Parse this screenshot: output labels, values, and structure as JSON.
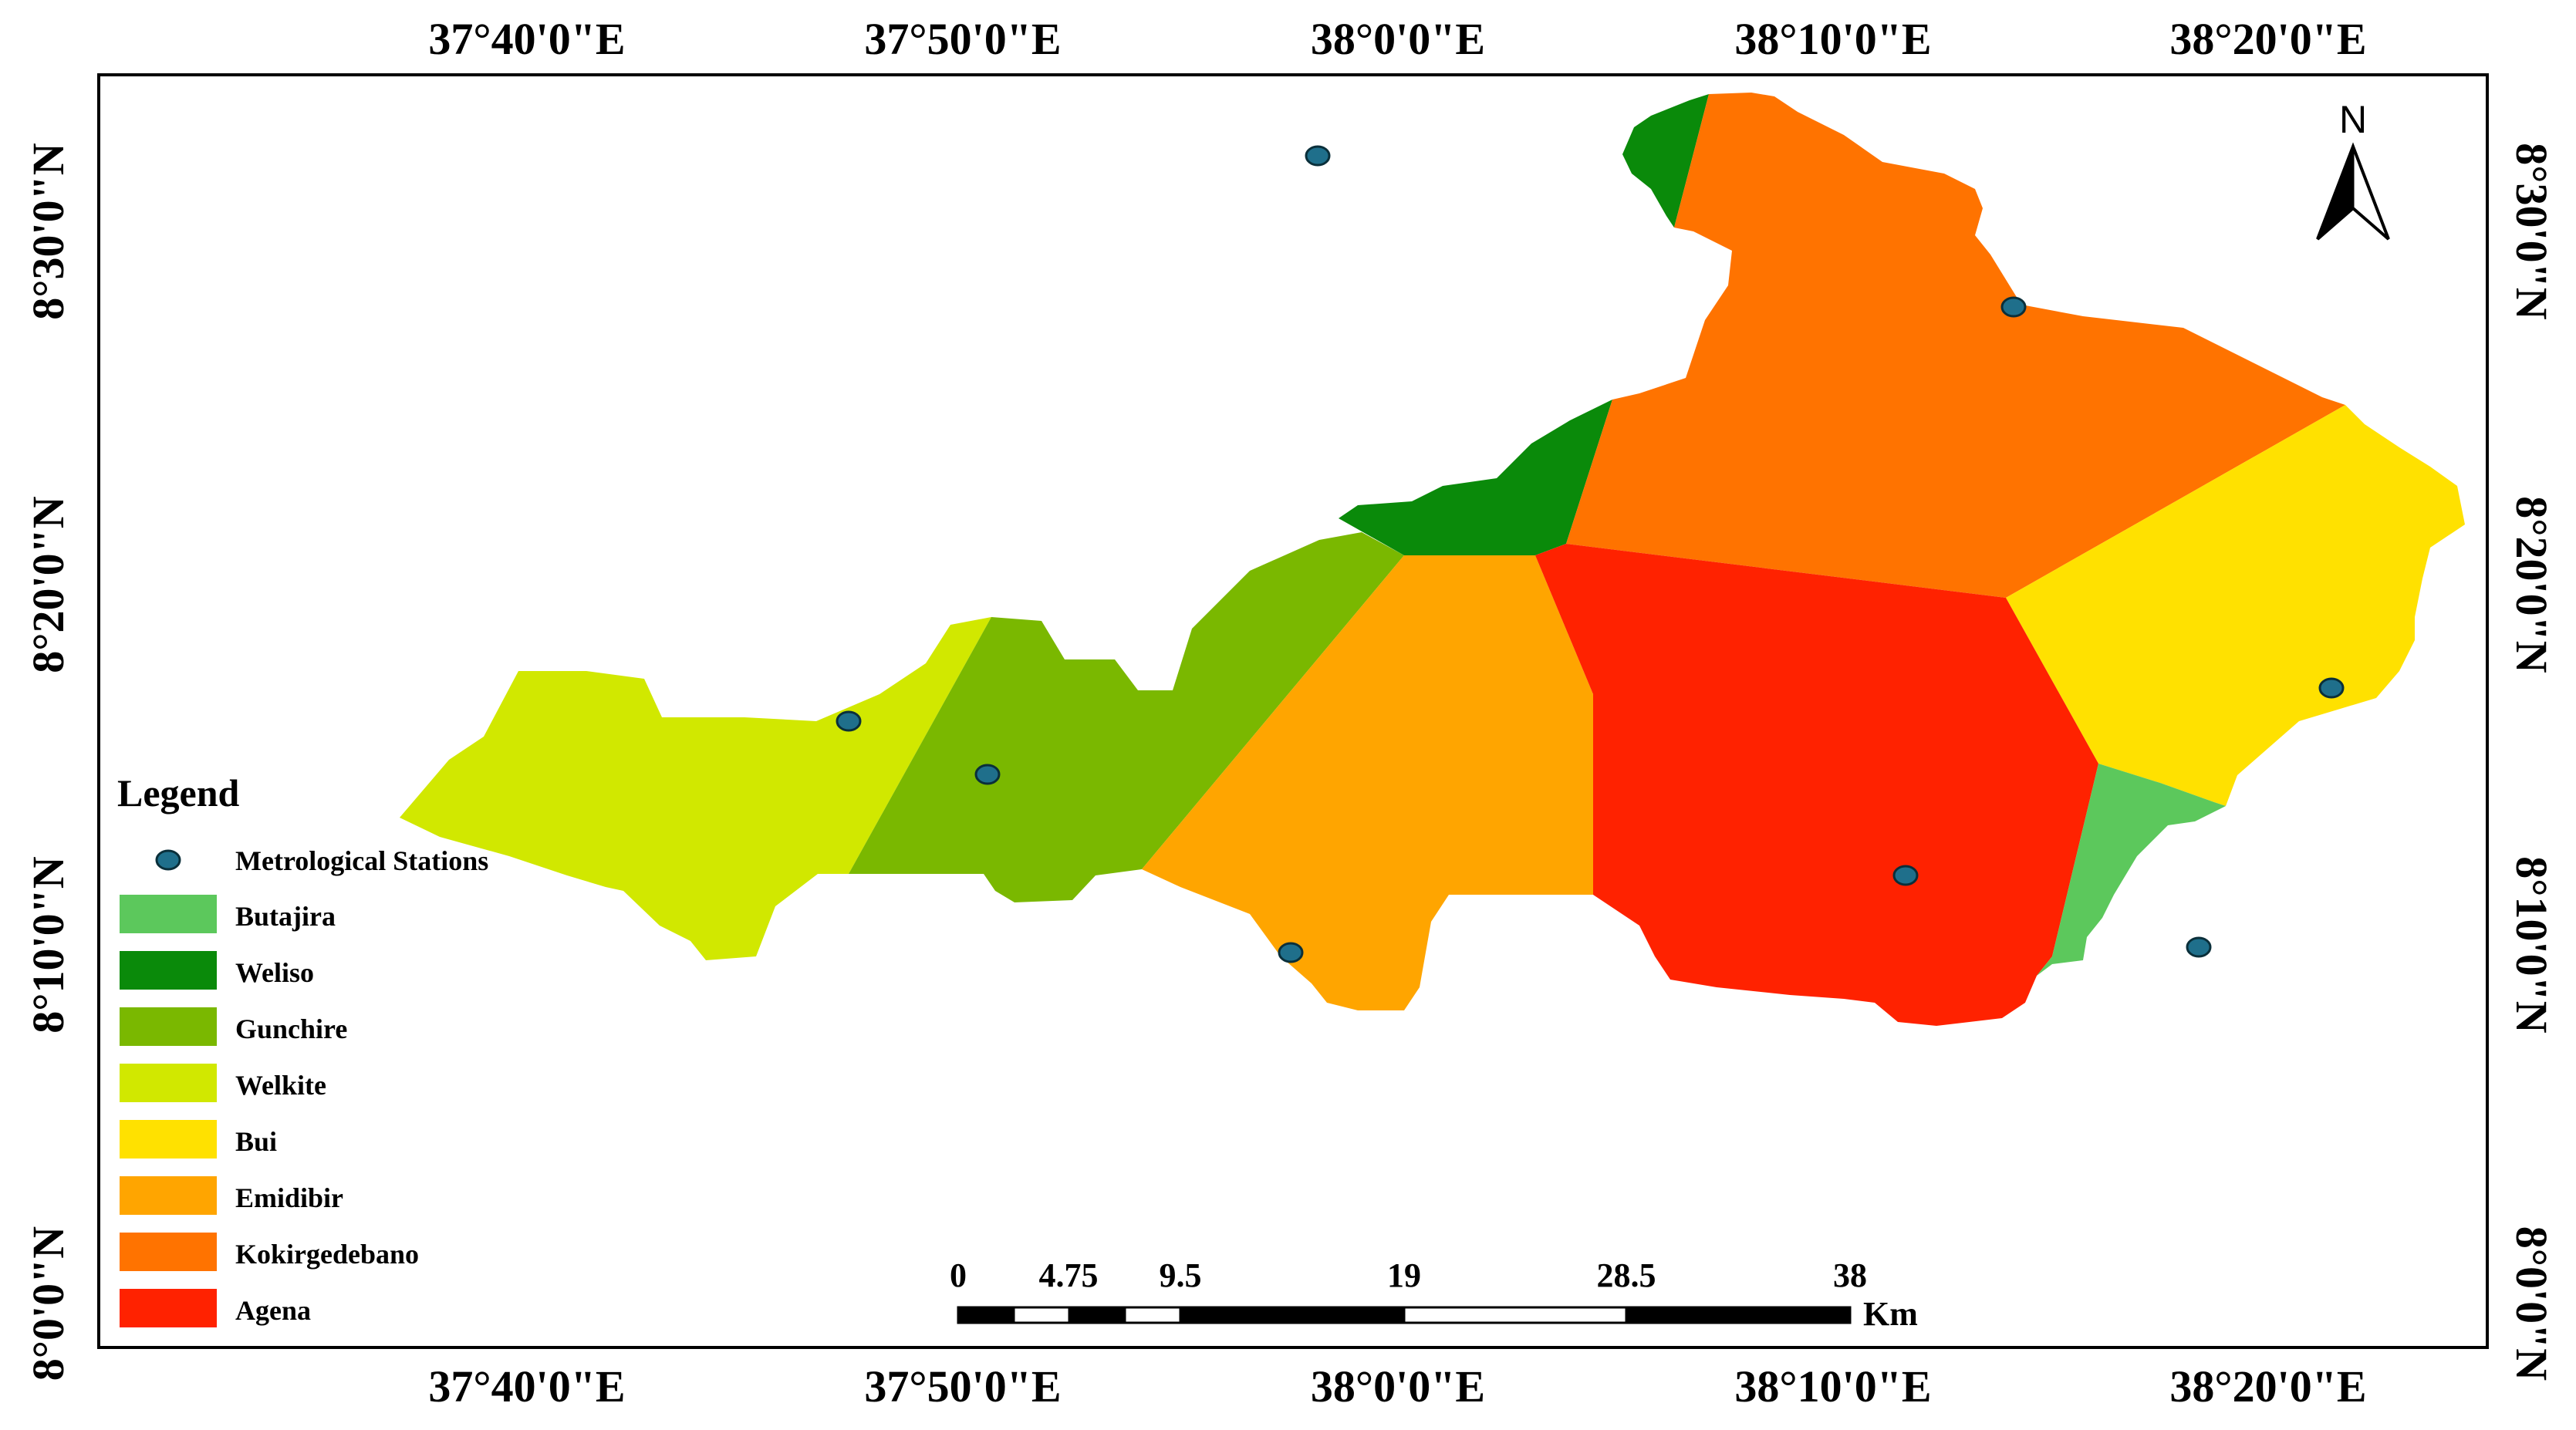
{
  "map": {
    "top_longitude_labels": [
      "37°40'0\"E",
      "37°50'0\"E",
      "38°0'0\"E",
      "38°10'0\"E",
      "38°20'0\"E"
    ],
    "bottom_longitude_labels": [
      "37°40'0\"E",
      "37°50'0\"E",
      "38°0'0\"E",
      "38°10'0\"E",
      "38°20'0\"E"
    ],
    "left_latitude_labels": [
      "8°30'0\"N",
      "8°20'0\"N",
      "8°10'0\"N",
      "8°0'0\"N"
    ],
    "right_latitude_labels": [
      "8°30'0\"N",
      "8°20'0\"N",
      "8°10'0\"N",
      "8°0'0\"N"
    ],
    "north_arrow_label": "N"
  },
  "legend": {
    "title": "Legend",
    "station_label": "Metrological Stations",
    "station_color": "#1f6f8b",
    "items": [
      {
        "label": "Butajira",
        "color": "#5cc85c"
      },
      {
        "label": "Weliso",
        "color": "#0a8a0a"
      },
      {
        "label": "Gunchire",
        "color": "#7ab800"
      },
      {
        "label": "Welkite",
        "color": "#d1e800"
      },
      {
        "label": "Bui",
        "color": "#ffe100"
      },
      {
        "label": "Emidibir",
        "color": "#ffa500"
      },
      {
        "label": "Kokirgedebano",
        "color": "#ff7300"
      },
      {
        "label": "Agena",
        "color": "#ff2200"
      }
    ]
  },
  "scale_bar": {
    "ticks": [
      "0",
      "4.75",
      "9.5",
      "19",
      "28.5",
      "38"
    ],
    "unit": "Km"
  }
}
